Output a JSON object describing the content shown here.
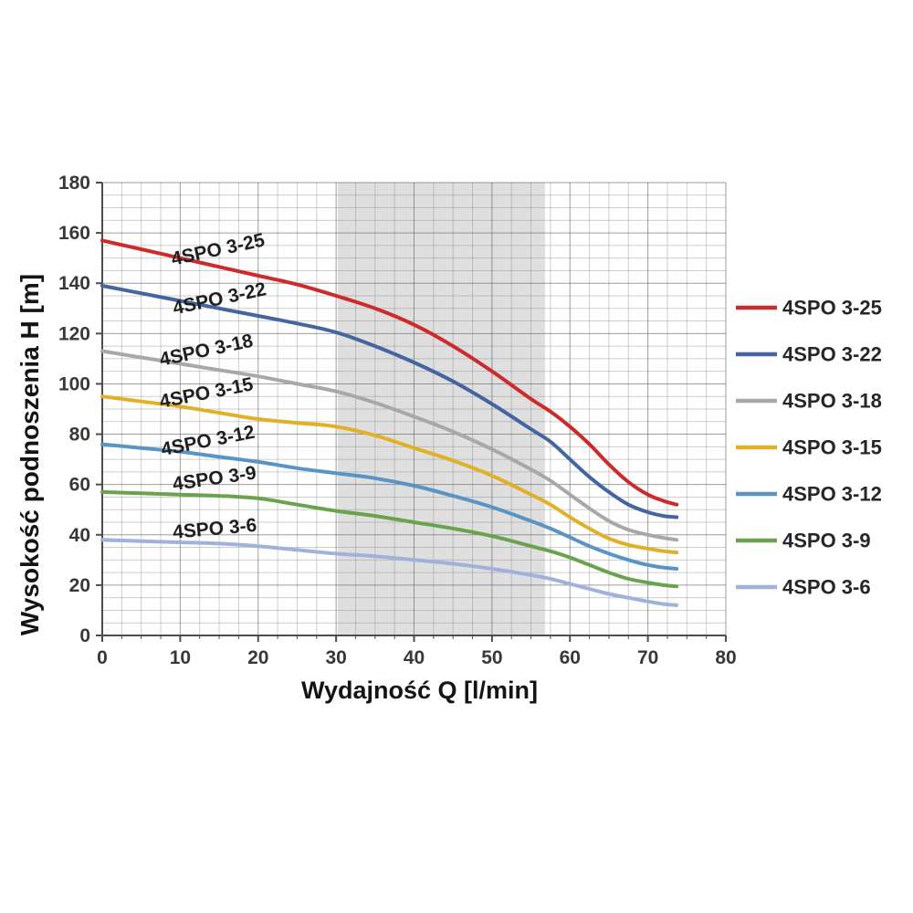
{
  "chart_data": {
    "type": "line",
    "title": "",
    "xlabel": "Wydajność Q [l/min]",
    "ylabel": "Wysokość podnoszenia H [m]",
    "xlim": [
      0,
      80
    ],
    "ylim": [
      0,
      180
    ],
    "x_ticks": [
      0,
      10,
      20,
      30,
      40,
      50,
      60,
      70,
      80
    ],
    "y_ticks": [
      0,
      20,
      40,
      60,
      80,
      100,
      120,
      140,
      160,
      180
    ],
    "x_minor_step": 2.5,
    "y_minor_step": 5,
    "grid": true,
    "legend_position": "right",
    "recommended_band": {
      "x_start": 30.2,
      "x_end": 56.8,
      "color": "#d9d9d9"
    },
    "axis_color": "#4d4d4d",
    "tick_label_color": "#383838",
    "title_color": "#141414",
    "curve_label_color": "#1f1f1f",
    "legend_text_color": "#262626",
    "series": [
      {
        "name": "4SPO 3-25",
        "color": "#cd2a2b",
        "points": [
          [
            0,
            157
          ],
          [
            5,
            153.5
          ],
          [
            10,
            150
          ],
          [
            15,
            146.5
          ],
          [
            20,
            143
          ],
          [
            25,
            139.5
          ],
          [
            30,
            135
          ],
          [
            35,
            130
          ],
          [
            40,
            123.5
          ],
          [
            45,
            115
          ],
          [
            50,
            105
          ],
          [
            55,
            94
          ],
          [
            57.5,
            89
          ],
          [
            60,
            83
          ],
          [
            62.5,
            76
          ],
          [
            65,
            68
          ],
          [
            67.5,
            61
          ],
          [
            70,
            56
          ],
          [
            72,
            53.5
          ],
          [
            73.7,
            52
          ]
        ]
      },
      {
        "name": "4SPO 3-22",
        "color": "#44659f",
        "points": [
          [
            0,
            139
          ],
          [
            5,
            136
          ],
          [
            10,
            133
          ],
          [
            15,
            130
          ],
          [
            20,
            127
          ],
          [
            25,
            124
          ],
          [
            30,
            120.5
          ],
          [
            35,
            115
          ],
          [
            40,
            108.5
          ],
          [
            45,
            101
          ],
          [
            50,
            92
          ],
          [
            55,
            82
          ],
          [
            57.5,
            77
          ],
          [
            60,
            70
          ],
          [
            62.5,
            63
          ],
          [
            65,
            57
          ],
          [
            67.5,
            52
          ],
          [
            70,
            49
          ],
          [
            72,
            47.5
          ],
          [
            73.7,
            47
          ]
        ]
      },
      {
        "name": "4SPO 3-18",
        "color": "#a8a8a8",
        "points": [
          [
            0,
            113
          ],
          [
            5,
            110.5
          ],
          [
            10,
            108
          ],
          [
            15,
            105.5
          ],
          [
            20,
            103
          ],
          [
            25,
            100
          ],
          [
            30,
            97
          ],
          [
            35,
            92.5
          ],
          [
            40,
            87
          ],
          [
            45,
            81
          ],
          [
            50,
            74
          ],
          [
            55,
            66
          ],
          [
            57.5,
            61.5
          ],
          [
            60,
            56
          ],
          [
            62.5,
            50.5
          ],
          [
            65,
            45.5
          ],
          [
            67.5,
            42
          ],
          [
            70,
            40
          ],
          [
            72,
            38.8
          ],
          [
            73.7,
            38
          ]
        ]
      },
      {
        "name": "4SPO 3-15",
        "color": "#e0b026",
        "points": [
          [
            0,
            95
          ],
          [
            5,
            93
          ],
          [
            10,
            91
          ],
          [
            15,
            88.5
          ],
          [
            20,
            86
          ],
          [
            25,
            84.5
          ],
          [
            30,
            83
          ],
          [
            35,
            79.5
          ],
          [
            40,
            74.5
          ],
          [
            45,
            69.5
          ],
          [
            50,
            63.5
          ],
          [
            55,
            56
          ],
          [
            57.5,
            52
          ],
          [
            60,
            47
          ],
          [
            62.5,
            42.5
          ],
          [
            65,
            38.5
          ],
          [
            67.5,
            36
          ],
          [
            70,
            34.5
          ],
          [
            72,
            33.5
          ],
          [
            73.7,
            33
          ]
        ]
      },
      {
        "name": "4SPO 3-12",
        "color": "#5a94c4",
        "points": [
          [
            0,
            76
          ],
          [
            5,
            74.5
          ],
          [
            10,
            73
          ],
          [
            15,
            71
          ],
          [
            20,
            69
          ],
          [
            25,
            66.5
          ],
          [
            30,
            64.5
          ],
          [
            35,
            62.5
          ],
          [
            40,
            59.5
          ],
          [
            45,
            55.5
          ],
          [
            50,
            51
          ],
          [
            55,
            45.5
          ],
          [
            57.5,
            42.5
          ],
          [
            60,
            39
          ],
          [
            62.5,
            35.5
          ],
          [
            65,
            32.5
          ],
          [
            67.5,
            30
          ],
          [
            70,
            28
          ],
          [
            72,
            27
          ],
          [
            73.7,
            26.5
          ]
        ]
      },
      {
        "name": "4SPO 3-9",
        "color": "#6ba24f",
        "points": [
          [
            0,
            57
          ],
          [
            5,
            56.5
          ],
          [
            10,
            56
          ],
          [
            15,
            55.5
          ],
          [
            20,
            54.5
          ],
          [
            25,
            52
          ],
          [
            30,
            49.5
          ],
          [
            35,
            47.5
          ],
          [
            40,
            45
          ],
          [
            45,
            42.5
          ],
          [
            50,
            39.5
          ],
          [
            55,
            35.5
          ],
          [
            57.5,
            33.5
          ],
          [
            60,
            31
          ],
          [
            62.5,
            28
          ],
          [
            65,
            25
          ],
          [
            67.5,
            22.5
          ],
          [
            70,
            21
          ],
          [
            72,
            20
          ],
          [
            73.7,
            19.5
          ]
        ]
      },
      {
        "name": "4SPO 3-6",
        "color": "#a2b1db",
        "points": [
          [
            0,
            38
          ],
          [
            5,
            37.5
          ],
          [
            10,
            37
          ],
          [
            15,
            36.5
          ],
          [
            20,
            35.5
          ],
          [
            25,
            34
          ],
          [
            30,
            32.5
          ],
          [
            35,
            31.5
          ],
          [
            40,
            30
          ],
          [
            45,
            28.5
          ],
          [
            50,
            26.5
          ],
          [
            55,
            24
          ],
          [
            57.5,
            22.5
          ],
          [
            60,
            20.5
          ],
          [
            62.5,
            18.5
          ],
          [
            65,
            16.5
          ],
          [
            67.5,
            15
          ],
          [
            70,
            13.5
          ],
          [
            72,
            12.5
          ],
          [
            73.7,
            12
          ]
        ]
      }
    ],
    "curve_labels": [
      {
        "text": "4SPO 3-25",
        "q": 15,
        "h": 151,
        "angle": -12
      },
      {
        "text": "4SPO 3-22",
        "q": 15.2,
        "h": 131.5,
        "angle": -12
      },
      {
        "text": "4SPO 3-18",
        "q": 13.5,
        "h": 111,
        "angle": -12
      },
      {
        "text": "4SPO 3-15",
        "q": 13.5,
        "h": 94,
        "angle": -11
      },
      {
        "text": "4SPO 3-12",
        "q": 13.7,
        "h": 75,
        "angle": -11
      },
      {
        "text": "4SPO 3-9",
        "q": 14.5,
        "h": 60,
        "angle": -8
      },
      {
        "text": "4SPO 3-6",
        "q": 14.5,
        "h": 40,
        "angle": -5
      }
    ],
    "legend": [
      "4SPO 3-25",
      "4SPO 3-22",
      "4SPO 3-18",
      "4SPO 3-15",
      "4SPO 3-12",
      "4SPO 3-9",
      "4SPO 3-6"
    ]
  }
}
